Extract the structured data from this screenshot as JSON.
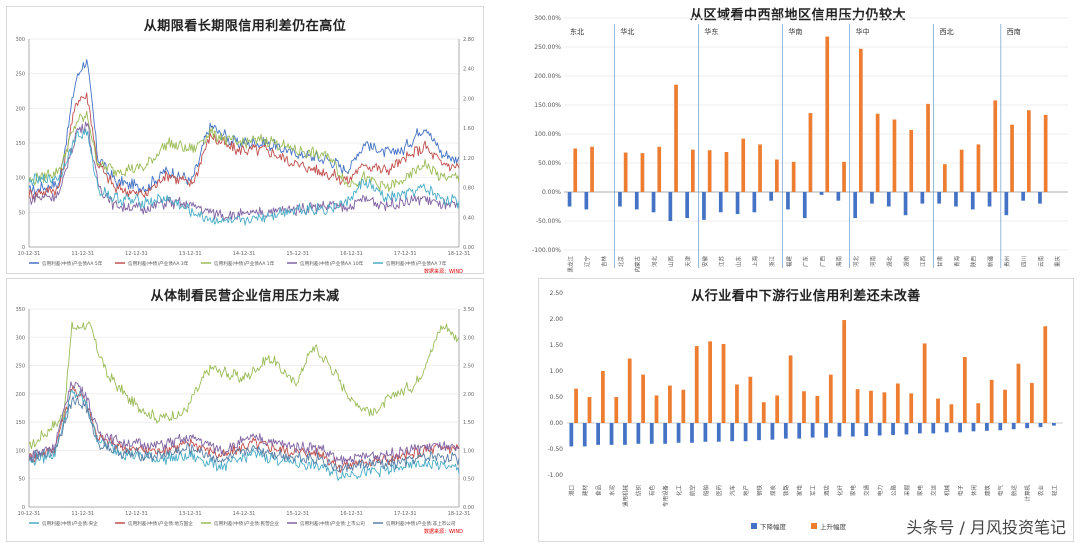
{
  "watermark": "头条号 / 月风投资笔记",
  "colors": {
    "blue": "#4472C4",
    "orange": "#ED7D31",
    "red": "#C0504D",
    "olive": "#9BBB59",
    "purple": "#8064A2",
    "teal": "#4BACC6",
    "steel": "#5B7FA6"
  },
  "panels": {
    "tl": {
      "title": "从期限看长期限信用利差仍在高位"
    },
    "bl": {
      "title": "从体制看民营企业信用压力未减"
    },
    "tr": {
      "title": "从区域看中西部地区信用压力仍较大"
    },
    "br": {
      "title": "从行业看中下游行业信用利差还未改善"
    }
  },
  "chart_data": [
    {
      "type": "line",
      "id": "tl",
      "title": "从期限看长期限信用利差仍在高位",
      "ylim": [
        0,
        300
      ],
      "yticks": [
        "0",
        "50",
        "100",
        "150",
        "200",
        "250",
        "300"
      ],
      "y2ticks": [
        "0.00",
        "0.40",
        "0.80",
        "1.20",
        "1.60",
        "2.00",
        "2.40",
        "2.80"
      ],
      "xticks": [
        "10-12-31",
        "11-12-31",
        "12-12-31",
        "13-12-31",
        "14-12-31",
        "15-12-31",
        "16-12-31",
        "17-12-31",
        "18-12-31"
      ],
      "legend": [
        "信用利差(中债)产业债AA 5年",
        "信用利差(中债)产业债AA 3年",
        "信用利差(中债)产业债AA 1年",
        "信用利差(中债)产业债AA 10年",
        "信用利差(中债)产业债AA 7年"
      ],
      "source": "数据来源：WIND",
      "series": [
        {
          "name": "信用利差(中债)产业债AA 5年",
          "color": "#4472C4",
          "anchors": [
            0,
            80,
            0.07,
            92,
            0.11,
            245,
            0.135,
            270,
            0.16,
            130,
            0.2,
            95,
            0.27,
            85,
            0.32,
            110,
            0.38,
            95,
            0.42,
            175,
            0.48,
            150,
            0.55,
            150,
            0.62,
            135,
            0.7,
            125,
            0.74,
            110,
            0.78,
            150,
            0.83,
            135,
            0.87,
            140,
            0.92,
            175,
            0.96,
            135,
            1,
            125
          ]
        },
        {
          "name": "信用利差(中债)产业债AA 3年",
          "color": "#C0504D",
          "anchors": [
            0,
            75,
            0.07,
            85,
            0.11,
            210,
            0.135,
            220,
            0.16,
            120,
            0.2,
            85,
            0.27,
            75,
            0.32,
            105,
            0.38,
            90,
            0.42,
            160,
            0.48,
            140,
            0.55,
            140,
            0.62,
            120,
            0.7,
            105,
            0.74,
            95,
            0.78,
            120,
            0.83,
            110,
            0.87,
            125,
            0.92,
            145,
            0.96,
            120,
            1,
            115
          ]
        },
        {
          "name": "信用利差(中债)产业债AA 1年",
          "color": "#9BBB59",
          "anchors": [
            0,
            95,
            0.07,
            110,
            0.11,
            180,
            0.135,
            190,
            0.16,
            120,
            0.2,
            110,
            0.27,
            115,
            0.32,
            150,
            0.38,
            140,
            0.42,
            165,
            0.48,
            150,
            0.55,
            155,
            0.62,
            140,
            0.7,
            130,
            0.74,
            90,
            0.78,
            100,
            0.83,
            85,
            0.87,
            95,
            0.92,
            120,
            0.96,
            100,
            1,
            100
          ]
        },
        {
          "name": "信用利差(中债)产业债AA 10年",
          "color": "#8064A2",
          "anchors": [
            0,
            70,
            0.07,
            75,
            0.11,
            165,
            0.135,
            180,
            0.16,
            90,
            0.2,
            60,
            0.27,
            55,
            0.32,
            65,
            0.38,
            60,
            0.42,
            50,
            0.48,
            45,
            0.55,
            50,
            0.62,
            55,
            0.7,
            60,
            0.74,
            55,
            0.78,
            70,
            0.83,
            60,
            0.87,
            65,
            0.92,
            70,
            0.96,
            60,
            1,
            58
          ]
        },
        {
          "name": "信用利差(中债)产业债AA 7年",
          "color": "#4BACC6",
          "anchors": [
            0,
            95,
            0.07,
            100,
            0.11,
            160,
            0.135,
            165,
            0.16,
            85,
            0.2,
            70,
            0.27,
            65,
            0.32,
            70,
            0.38,
            50,
            0.42,
            40,
            0.48,
            35,
            0.55,
            45,
            0.62,
            55,
            0.7,
            55,
            0.74,
            65,
            0.78,
            95,
            0.83,
            70,
            0.87,
            75,
            0.92,
            85,
            0.96,
            70,
            1,
            65
          ]
        }
      ]
    },
    {
      "type": "line",
      "id": "bl",
      "title": "从体制看民营企业信用压力未减",
      "ylim": [
        0,
        370
      ],
      "yticks": [
        "0",
        "50",
        "100",
        "150",
        "200",
        "250",
        "300",
        "350"
      ],
      "y2ticks": [
        "0.00",
        "0.50",
        "1.00",
        "1.50",
        "2.00",
        "2.50",
        "3.00",
        "3.50"
      ],
      "xticks": [
        "10-12-31",
        "11-12-31",
        "12-12-31",
        "13-12-31",
        "14-12-31",
        "15-12-31",
        "16-12-31",
        "17-12-31",
        "18-12-31"
      ],
      "legend": [
        "信用利差(中债)产业债:央企",
        "信用利差(中债)产业债:地方国企",
        "信用利差(中债)产业债:民营企业",
        "信用利差(中债)产业债:上市公司",
        "信用利差(中债)产业债:非上市公司"
      ],
      "source": "数据来源：WIND",
      "series": [
        {
          "name": "信用利差(中债)产业债:民营企业",
          "color": "#9BBB59",
          "anchors": [
            0,
            110,
            0.08,
            170,
            0.1,
            335,
            0.14,
            340,
            0.18,
            250,
            0.24,
            195,
            0.3,
            165,
            0.36,
            175,
            0.42,
            260,
            0.5,
            240,
            0.56,
            280,
            0.62,
            230,
            0.66,
            300,
            0.7,
            265,
            0.75,
            200,
            0.8,
            175,
            0.85,
            210,
            0.9,
            230,
            0.94,
            300,
            0.96,
            340,
            0.98,
            330,
            1,
            310
          ]
        },
        {
          "name": "信用利差(中债)产业债:地方国企",
          "color": "#C0504D",
          "anchors": [
            0,
            90,
            0.06,
            110,
            0.1,
            220,
            0.13,
            205,
            0.16,
            130,
            0.22,
            110,
            0.3,
            105,
            0.38,
            120,
            0.45,
            95,
            0.52,
            120,
            0.6,
            105,
            0.68,
            100,
            0.72,
            75,
            0.78,
            85,
            0.85,
            90,
            0.9,
            100,
            0.95,
            110,
            1,
            110
          ]
        },
        {
          "name": "信用利差(中债)产业债:央企",
          "color": "#4BACC6",
          "anchors": [
            0,
            85,
            0.06,
            100,
            0.1,
            215,
            0.13,
            200,
            0.16,
            125,
            0.22,
            100,
            0.3,
            90,
            0.38,
            95,
            0.45,
            75,
            0.52,
            100,
            0.6,
            85,
            0.68,
            75,
            0.72,
            60,
            0.78,
            65,
            0.85,
            70,
            0.9,
            80,
            0.95,
            80,
            1,
            70
          ]
        },
        {
          "name": "信用利差(中债)产业债:上市公司",
          "color": "#8064A2",
          "anchors": [
            0,
            95,
            0.06,
            115,
            0.1,
            235,
            0.13,
            215,
            0.16,
            140,
            0.22,
            120,
            0.3,
            115,
            0.38,
            130,
            0.45,
            105,
            0.52,
            130,
            0.6,
            115,
            0.68,
            110,
            0.72,
            85,
            0.78,
            95,
            0.85,
            100,
            0.9,
            110,
            0.95,
            115,
            1,
            105
          ]
        },
        {
          "name": "信用利差(中债)产业债:非上市公司",
          "color": "#5B7FA6",
          "anchors": [
            0,
            90,
            0.06,
            105,
            0.1,
            200,
            0.13,
            190,
            0.16,
            120,
            0.22,
            100,
            0.3,
            95,
            0.38,
            110,
            0.45,
            85,
            0.52,
            110,
            0.6,
            95,
            0.68,
            90,
            0.72,
            70,
            0.78,
            80,
            0.85,
            80,
            0.9,
            90,
            0.95,
            95,
            1,
            90
          ]
        }
      ]
    },
    {
      "type": "bar",
      "id": "tr",
      "title": "从区域看中西部地区信用压力仍较大",
      "ylim": [
        -100,
        300
      ],
      "yticks": [
        "-100.00%",
        "-50.00%",
        "0.00%",
        "50.00%",
        "100.00%",
        "150.00%",
        "200.00%",
        "250.00%",
        "300.00%"
      ],
      "groups": [
        {
          "name": "东北",
          "count": 3
        },
        {
          "name": "华北",
          "count": 5
        },
        {
          "name": "华东",
          "count": 5
        },
        {
          "name": "华南",
          "count": 4
        },
        {
          "name": "华中",
          "count": 5
        },
        {
          "name": "西北",
          "count": 4
        },
        {
          "name": "西南",
          "count": 4
        }
      ],
      "categories": [
        "黑龙江",
        "辽宁",
        "吉林",
        "北京",
        "内蒙古",
        "河北",
        "山西",
        "天津",
        "安徽",
        "江苏",
        "山东",
        "上海",
        "浙江",
        "福建",
        "广东",
        "广西",
        "海南",
        "河北",
        "河南",
        "湖北",
        "湖南",
        "江西",
        "甘肃",
        "青海",
        "陕西",
        "新疆",
        "贵州",
        "四川",
        "云南",
        "重庆"
      ],
      "series": [
        {
          "name": "上升",
          "color": "#ED7D31",
          "values": [
            75,
            78,
            0,
            68,
            67,
            78,
            185,
            73,
            72,
            69,
            92,
            82,
            56,
            52,
            136,
            268,
            52,
            247,
            135,
            125,
            107,
            152,
            48,
            73,
            82,
            158,
            116,
            141,
            133,
            0
          ]
        },
        {
          "name": "下降",
          "color": "#4472C4",
          "values": [
            -25,
            -30,
            0,
            -25,
            -30,
            -35,
            -50,
            -45,
            -48,
            -35,
            -38,
            -35,
            -15,
            -30,
            -45,
            -5,
            -15,
            -45,
            -20,
            -25,
            -40,
            -20,
            -20,
            -25,
            -30,
            -25,
            -40,
            -15,
            -20,
            0
          ]
        }
      ]
    },
    {
      "type": "bar",
      "id": "br",
      "title": "从行业看中下游行业信用利差还未改善",
      "ylim": [
        -1.0,
        2.5
      ],
      "yticks": [
        "-1.00",
        "-0.50",
        "0.00",
        "0.50",
        "1.00",
        "1.50",
        "2.00",
        "2.50"
      ],
      "categories": [
        "港口",
        "建材",
        "食品",
        "水泥",
        "通用机械",
        "纺织",
        "有色",
        "专用设备",
        "化工",
        "航空",
        "船舶",
        "医药",
        "汽车",
        "地产",
        "钢铁",
        "煤炭",
        "铁路",
        "家电",
        "军工",
        "酒店",
        "化纤",
        "家电",
        "交通",
        "电力",
        "公路",
        "采掘",
        "家电",
        "交运",
        "机械",
        "电子",
        "休闲",
        "建筑",
        "电气",
        "航运",
        "计算机",
        "农业",
        "轻工"
      ],
      "series": [
        {
          "name": "下降幅度",
          "color": "#4472C4",
          "values": [
            -0.45,
            -0.45,
            -0.42,
            -0.42,
            -0.42,
            -0.4,
            -0.4,
            -0.4,
            -0.38,
            -0.38,
            -0.36,
            -0.36,
            -0.35,
            -0.35,
            -0.33,
            -0.32,
            -0.3,
            -0.3,
            -0.28,
            -0.28,
            -0.26,
            -0.26,
            -0.25,
            -0.24,
            -0.23,
            -0.22,
            -0.2,
            -0.2,
            -0.18,
            -0.18,
            -0.16,
            -0.15,
            -0.14,
            -0.12,
            -0.1,
            -0.08,
            -0.05
          ]
        },
        {
          "name": "上升幅度",
          "color": "#ED7D31",
          "values": [
            0.66,
            0.5,
            1.0,
            0.5,
            1.24,
            0.93,
            0.53,
            0.72,
            0.64,
            1.48,
            1.57,
            1.52,
            0.74,
            0.89,
            0.4,
            0.53,
            1.3,
            0.61,
            0.52,
            0.93,
            1.98,
            0.65,
            0.62,
            0.59,
            0.76,
            0.57,
            1.53,
            0.47,
            0.36,
            1.27,
            0.38,
            0.83,
            0.64,
            1.14,
            0.77,
            1.86,
            0.0
          ]
        }
      ],
      "legend": [
        "下降幅度",
        "上升幅度"
      ]
    }
  ]
}
